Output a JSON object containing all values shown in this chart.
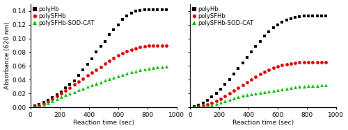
{
  "left": {
    "polyHb_x": [
      30,
      60,
      90,
      120,
      150,
      180,
      210,
      240,
      270,
      300,
      330,
      360,
      390,
      420,
      450,
      480,
      510,
      540,
      570,
      600,
      630,
      660,
      690,
      720,
      750,
      780,
      810,
      840,
      870,
      900,
      930
    ],
    "polyHb_y": [
      0.002,
      0.004,
      0.007,
      0.01,
      0.014,
      0.018,
      0.022,
      0.028,
      0.033,
      0.038,
      0.046,
      0.054,
      0.062,
      0.07,
      0.08,
      0.088,
      0.096,
      0.106,
      0.113,
      0.12,
      0.128,
      0.133,
      0.137,
      0.14,
      0.141,
      0.142,
      0.142,
      0.142,
      0.142,
      0.142,
      0.142
    ],
    "polySFHb_x": [
      30,
      60,
      90,
      120,
      150,
      180,
      210,
      240,
      270,
      300,
      330,
      360,
      390,
      420,
      450,
      480,
      510,
      540,
      570,
      600,
      630,
      660,
      690,
      720,
      750,
      780,
      810,
      840,
      870,
      900,
      930
    ],
    "polySFHb_y": [
      0.001,
      0.002,
      0.005,
      0.008,
      0.012,
      0.016,
      0.02,
      0.024,
      0.028,
      0.033,
      0.037,
      0.041,
      0.046,
      0.05,
      0.054,
      0.058,
      0.063,
      0.067,
      0.071,
      0.075,
      0.078,
      0.081,
      0.083,
      0.085,
      0.087,
      0.088,
      0.089,
      0.09,
      0.09,
      0.09,
      0.09
    ],
    "polySOD_x": [
      30,
      60,
      90,
      120,
      150,
      180,
      210,
      240,
      270,
      300,
      330,
      360,
      390,
      420,
      450,
      480,
      510,
      540,
      570,
      600,
      630,
      660,
      690,
      720,
      750,
      780,
      810,
      840,
      870,
      900,
      930
    ],
    "polySOD_y": [
      0.001,
      0.002,
      0.004,
      0.006,
      0.009,
      0.012,
      0.015,
      0.018,
      0.02,
      0.022,
      0.025,
      0.027,
      0.03,
      0.032,
      0.034,
      0.036,
      0.039,
      0.041,
      0.043,
      0.045,
      0.047,
      0.049,
      0.051,
      0.052,
      0.054,
      0.055,
      0.056,
      0.057,
      0.058,
      0.058,
      0.059
    ]
  },
  "right": {
    "polyHb_x": [
      30,
      60,
      90,
      120,
      150,
      180,
      210,
      240,
      270,
      300,
      330,
      360,
      390,
      420,
      450,
      480,
      510,
      540,
      570,
      600,
      630,
      660,
      690,
      720,
      750,
      780,
      810,
      840,
      870,
      900,
      930
    ],
    "polyHb_y": [
      0.001,
      0.003,
      0.006,
      0.01,
      0.015,
      0.02,
      0.026,
      0.033,
      0.04,
      0.048,
      0.056,
      0.064,
      0.072,
      0.08,
      0.088,
      0.096,
      0.104,
      0.11,
      0.116,
      0.12,
      0.124,
      0.127,
      0.129,
      0.131,
      0.132,
      0.133,
      0.133,
      0.133,
      0.133,
      0.133,
      0.133
    ],
    "polySFHb_x": [
      30,
      60,
      90,
      120,
      150,
      180,
      210,
      240,
      270,
      300,
      330,
      360,
      390,
      420,
      450,
      480,
      510,
      540,
      570,
      600,
      630,
      660,
      690,
      720,
      750,
      780,
      810,
      840,
      870,
      900,
      930
    ],
    "polySFHb_y": [
      0.0,
      0.001,
      0.002,
      0.004,
      0.006,
      0.009,
      0.012,
      0.016,
      0.02,
      0.024,
      0.028,
      0.032,
      0.036,
      0.04,
      0.044,
      0.048,
      0.051,
      0.054,
      0.057,
      0.059,
      0.061,
      0.062,
      0.063,
      0.064,
      0.065,
      0.065,
      0.065,
      0.065,
      0.065,
      0.065,
      0.065
    ],
    "polySOD_x": [
      30,
      60,
      90,
      120,
      150,
      180,
      210,
      240,
      270,
      300,
      330,
      360,
      390,
      420,
      450,
      480,
      510,
      540,
      570,
      600,
      630,
      660,
      690,
      720,
      750,
      780,
      810,
      840,
      870,
      900,
      930
    ],
    "polySOD_y": [
      0.0,
      0.0,
      0.001,
      0.002,
      0.003,
      0.005,
      0.007,
      0.009,
      0.011,
      0.013,
      0.015,
      0.017,
      0.018,
      0.019,
      0.02,
      0.021,
      0.022,
      0.023,
      0.024,
      0.025,
      0.026,
      0.027,
      0.028,
      0.029,
      0.03,
      0.03,
      0.031,
      0.031,
      0.031,
      0.032,
      0.032
    ]
  },
  "ylabel": "Absorbance (620 nm)",
  "xlabel": "Reaction time (sec)",
  "ylim": [
    0,
    0.15
  ],
  "xlim": [
    0,
    1000
  ],
  "yticks": [
    0.0,
    0.02,
    0.04,
    0.06,
    0.08,
    0.1,
    0.12,
    0.14
  ],
  "xticks": [
    0,
    200,
    400,
    600,
    800,
    1000
  ],
  "colors": {
    "polyHb": "#000000",
    "polySFHb": "#dd0000",
    "polySOD": "#00bb00"
  },
  "legend_labels": [
    "polyHb",
    "polySFHb",
    "polySFHb-SOD-CAT"
  ],
  "marker_size": 3.5,
  "fontsize": 6.5
}
